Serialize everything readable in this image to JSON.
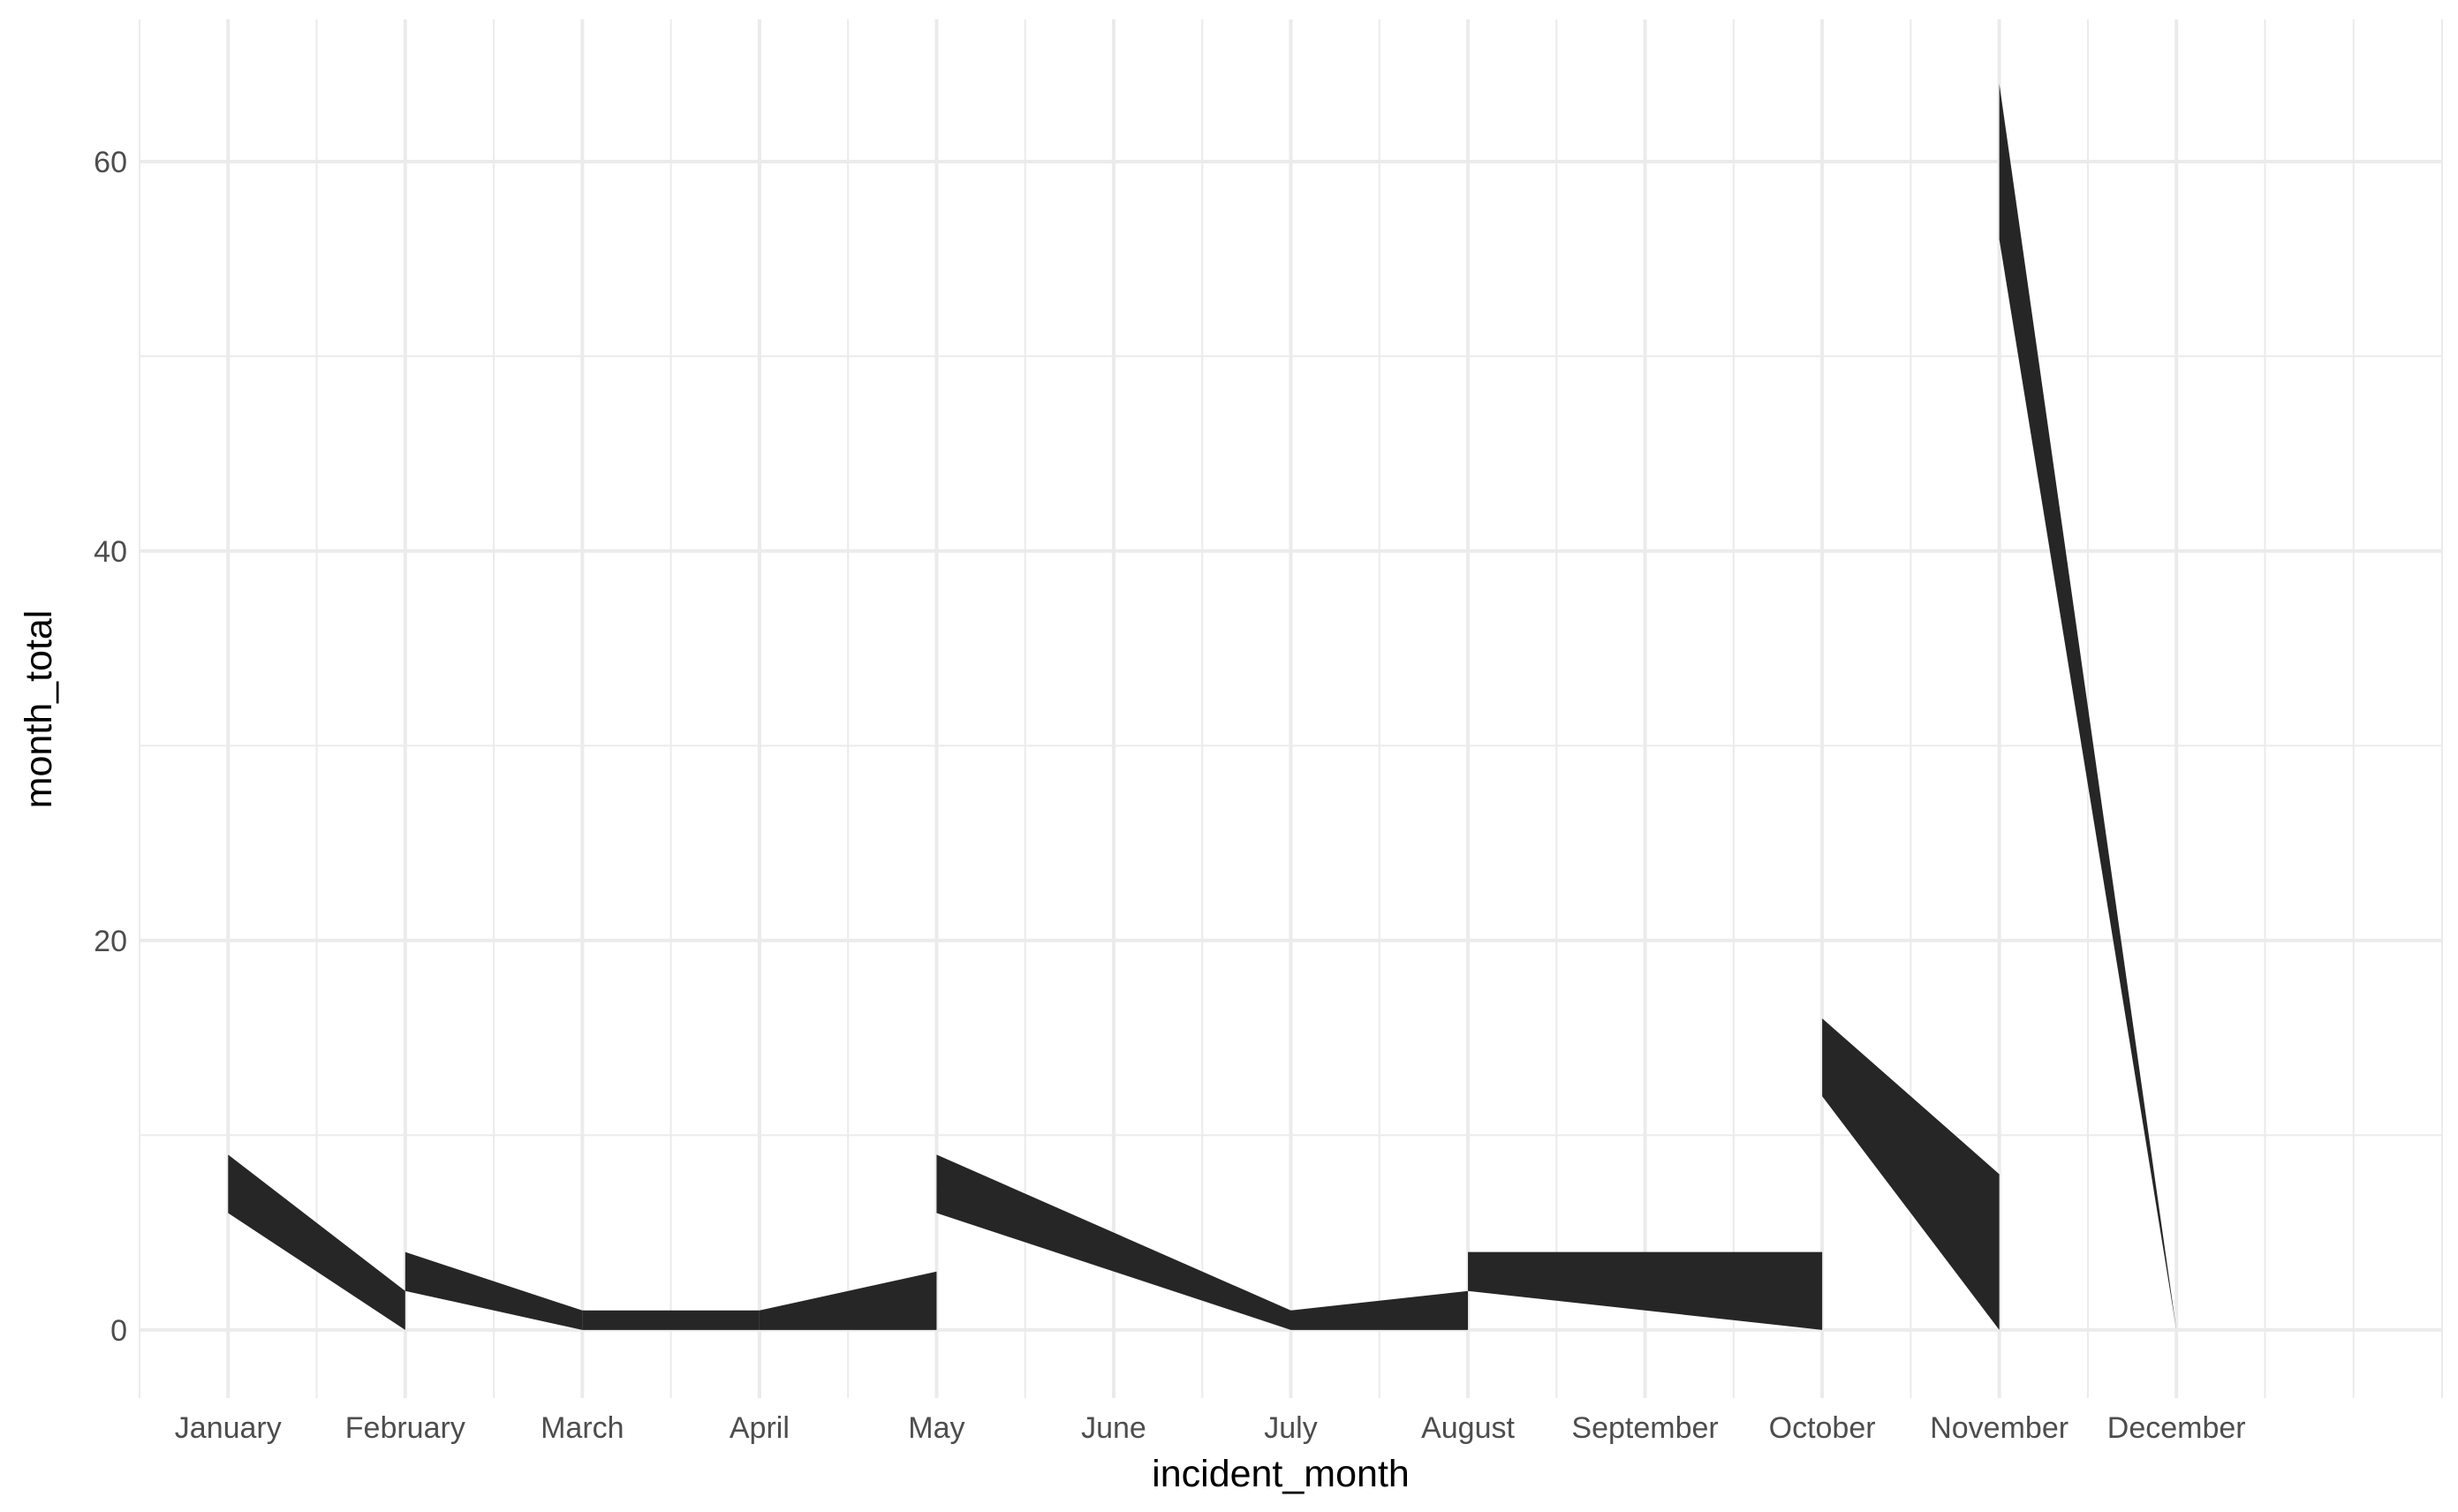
{
  "chart_data": {
    "type": "area",
    "xlabel": "incident_month",
    "ylabel": "month_total",
    "categories": [
      "January",
      "February",
      "March",
      "April",
      "May",
      "June",
      "July",
      "August",
      "September",
      "October",
      "November",
      "December"
    ],
    "ylim": [
      -3.5,
      67.3
    ],
    "y_ticks": [
      0,
      20,
      40,
      60
    ],
    "grid": true,
    "fill_color": "#262626",
    "gridline_color": "#ebebeb",
    "segments": [
      {
        "x": [
          1,
          2
        ],
        "upper": [
          9,
          2
        ],
        "lower": [
          6,
          0
        ]
      },
      {
        "x": [
          2,
          3
        ],
        "upper": [
          4,
          1
        ],
        "lower": [
          2,
          0
        ]
      },
      {
        "x": [
          3,
          4
        ],
        "upper": [
          1,
          1
        ],
        "lower": [
          0,
          0
        ]
      },
      {
        "x": [
          4,
          5
        ],
        "upper": [
          1,
          3
        ],
        "lower": [
          0,
          0
        ]
      },
      {
        "x": [
          5,
          7
        ],
        "upper": [
          9,
          1
        ],
        "lower": [
          6,
          0
        ]
      },
      {
        "x": [
          7,
          8
        ],
        "upper": [
          1,
          2
        ],
        "lower": [
          0,
          0
        ]
      },
      {
        "x": [
          8,
          10
        ],
        "upper": [
          4,
          4
        ],
        "lower": [
          2,
          0
        ]
      },
      {
        "x": [
          10,
          11
        ],
        "upper": [
          16,
          8
        ],
        "lower": [
          12,
          0
        ]
      },
      {
        "x": [
          11,
          12
        ],
        "upper": [
          64,
          0
        ],
        "lower": [
          56,
          0
        ]
      }
    ]
  }
}
